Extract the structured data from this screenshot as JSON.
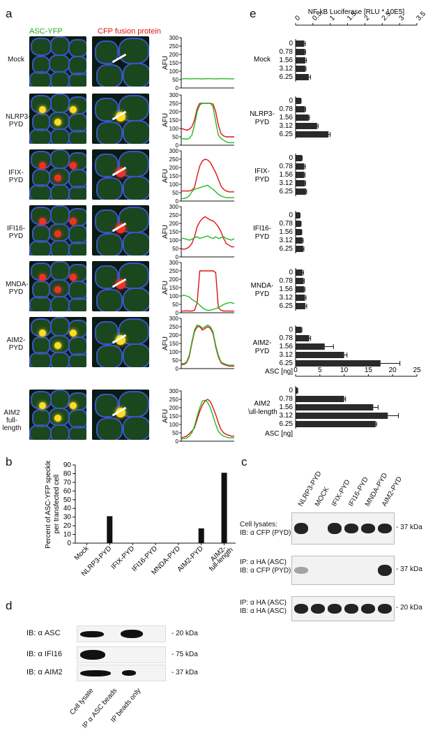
{
  "panels": {
    "a": {
      "letter": "a",
      "header_green": "ASC-YFP",
      "header_red": "CFP fusion protein",
      "rows": [
        {
          "label": "Mock",
          "line2": ""
        },
        {
          "label": "NLRP3-",
          "line2": "PYD"
        },
        {
          "label": "IFIX-",
          "line2": "PYD"
        },
        {
          "label": "IFI16-",
          "line2": "PYD"
        },
        {
          "label": "MNDA-",
          "line2": "PYD"
        },
        {
          "label": "AIM2-",
          "line2": "PYD"
        },
        {
          "label": "AIM2",
          "line2": "full-length"
        }
      ],
      "afu_label": "AFU",
      "afu_ticks": [
        "0",
        "50",
        "100",
        "150",
        "200",
        "250",
        "300"
      ],
      "colors": {
        "green": "#22bb22",
        "red": "#dd1111"
      },
      "profiles": [
        {
          "green": [
            55,
            55,
            56,
            54,
            55,
            55,
            56,
            55,
            54,
            55,
            56,
            55,
            55,
            54,
            55,
            56,
            55,
            55,
            55,
            54,
            55
          ],
          "red": []
        },
        {
          "green": [
            40,
            38,
            36,
            40,
            60,
            120,
            200,
            240,
            250,
            250,
            250,
            250,
            230,
            140,
            60,
            40,
            30,
            20,
            15,
            15,
            15
          ],
          "red": [
            100,
            95,
            90,
            95,
            110,
            150,
            220,
            250,
            250,
            250,
            250,
            250,
            245,
            200,
            120,
            70,
            55,
            50,
            50,
            50,
            50
          ]
        },
        {
          "green": [
            15,
            15,
            20,
            30,
            55,
            70,
            75,
            80,
            85,
            90,
            95,
            80,
            70,
            55,
            40,
            30,
            25,
            20,
            20,
            20,
            20
          ],
          "red": [
            60,
            60,
            60,
            60,
            65,
            80,
            150,
            210,
            240,
            250,
            245,
            230,
            200,
            170,
            130,
            90,
            70,
            60,
            55,
            55,
            55
          ]
        },
        {
          "green": [
            110,
            110,
            105,
            100,
            105,
            115,
            120,
            110,
            115,
            120,
            125,
            115,
            110,
            120,
            110,
            115,
            120,
            110,
            105,
            100,
            110
          ],
          "red": [
            50,
            45,
            50,
            60,
            80,
            120,
            180,
            210,
            230,
            240,
            230,
            220,
            215,
            200,
            180,
            150,
            110,
            80,
            70,
            60,
            60
          ]
        },
        {
          "green": [
            100,
            105,
            100,
            95,
            80,
            70,
            60,
            45,
            30,
            20,
            15,
            15,
            20,
            25,
            30,
            40,
            50,
            55,
            60,
            60,
            55
          ],
          "red": [
            10,
            10,
            12,
            10,
            10,
            15,
            60,
            250,
            250,
            250,
            250,
            250,
            250,
            240,
            30,
            15,
            10,
            10,
            10,
            10,
            10
          ]
        },
        {
          "green": [
            30,
            30,
            40,
            80,
            160,
            230,
            260,
            255,
            240,
            250,
            260,
            250,
            220,
            140,
            80,
            40,
            30,
            25,
            20,
            20,
            20
          ],
          "red": [
            25,
            25,
            35,
            70,
            150,
            220,
            250,
            250,
            230,
            240,
            250,
            240,
            210,
            130,
            70,
            35,
            25,
            20,
            15,
            15,
            15
          ]
        },
        {
          "green": [
            15,
            15,
            20,
            30,
            50,
            90,
            150,
            200,
            240,
            245,
            230,
            200,
            150,
            100,
            60,
            40,
            30,
            25,
            20,
            20,
            20
          ],
          "red": [
            20,
            25,
            30,
            45,
            60,
            80,
            130,
            180,
            215,
            240,
            250,
            235,
            200,
            160,
            110,
            70,
            50,
            40,
            35,
            30,
            30
          ]
        }
      ]
    },
    "b": {
      "letter": "b",
      "chart_data": {
        "type": "bar",
        "categories": [
          "Mock",
          "NLRP3-PYD",
          "IFIX-PYD",
          "IFI16-PYD",
          "MNDA-PYD",
          "AIM2-PYD",
          "AIM2-full-length"
        ],
        "values": [
          0,
          31,
          0,
          0,
          0,
          17,
          81
        ],
        "ylabel": "Percent of ASC-YFP speckle per transfected cell",
        "ylim": [
          0,
          90
        ],
        "yticks": [
          "0",
          "10",
          "20",
          "30",
          "40",
          "50",
          "60",
          "70",
          "80",
          "90"
        ],
        "xtick_labels": [
          "Mock",
          "NLRP3-PYD",
          "IFIX-PYD",
          "IFI16-PYD",
          "MNDA-PYD",
          "AIM2-PYD",
          "AIM2-",
          "full-length"
        ]
      }
    },
    "c": {
      "letter": "c",
      "lanes": [
        "NLRP3-PYD",
        "MOCK",
        "IFIX-PYD",
        "IFI16-PYD",
        "MNDA-PYD",
        "AIM2-PYD"
      ],
      "blots": [
        {
          "label1": "Cell lysates:",
          "label2": "IB: α CFP (PYD)",
          "kda": "- 37 kDa"
        },
        {
          "label1": "IP: α HA (ASC)",
          "label2": "IB: α CFP (PYD)",
          "kda": "- 37 kDa"
        },
        {
          "label1": "IP: α HA (ASC)",
          "label2": "IB: α HA (ASC)",
          "kda": "- 20 kDa"
        }
      ]
    },
    "d": {
      "letter": "d",
      "blots": [
        {
          "label": "IB: α ASC",
          "kda": "- 20 kDa"
        },
        {
          "label": "IB: α IFI16",
          "kda": "- 75 kDa"
        },
        {
          "label": "IB: α AIM2",
          "kda": "- 37 kDa"
        }
      ],
      "lanes": [
        "Cell lysate",
        "IP α ASC beads",
        "IP beads only"
      ]
    },
    "e": {
      "letter": "e",
      "chart_data": [
        {
          "type": "bar",
          "title": "NF-kB Luciferase [RLU * 10E5]",
          "xlim": [
            0,
            3.5
          ],
          "xticks": [
            "0",
            "0.5",
            "1",
            "1.5",
            "2",
            "2.5",
            "3",
            "3.5"
          ],
          "group_label": "ASC [ng]",
          "groups": [
            {
              "name": "Mock",
              "line2": "",
              "doses": [
                "0",
                "0.78",
                "1.56",
                "3.12",
                "6.25"
              ],
              "values": [
                0.25,
                0.27,
                0.28,
                0.28,
                0.38
              ],
              "errors": [
                0.03,
                0.02,
                0.03,
                0.02,
                0.05
              ]
            },
            {
              "name": "NLRP3-",
              "line2": "PYD",
              "doses": [
                "0",
                "0.78",
                "1.56",
                "3.12",
                "6.25"
              ],
              "values": [
                0.15,
                0.27,
                0.38,
                0.62,
                0.95
              ],
              "errors": [
                0.01,
                0.02,
                0.02,
                0.03,
                0.05
              ]
            },
            {
              "name": "IFIX-",
              "line2": "PYD",
              "doses": [
                "0",
                "0.78",
                "1.56",
                "3.12",
                "6.25"
              ],
              "values": [
                0.18,
                0.25,
                0.25,
                0.27,
                0.3
              ],
              "errors": [
                0.01,
                0.03,
                0.02,
                0.02,
                0.02
              ]
            },
            {
              "name": "IFI16-",
              "line2": "PYD",
              "doses": [
                "0",
                "0.78",
                "1.56",
                "3.12",
                "6.25"
              ],
              "values": [
                0.12,
                0.15,
                0.17,
                0.2,
                0.22
              ],
              "errors": [
                0.01,
                0.01,
                0.01,
                0.02,
                0.02
              ]
            },
            {
              "name": "MNDA-",
              "line2": "PYD",
              "doses": [
                "0",
                "0.78",
                "1.56",
                "3.12",
                "6.25"
              ],
              "values": [
                0.2,
                0.23,
                0.25,
                0.27,
                0.28
              ],
              "errors": [
                0.03,
                0.02,
                0.02,
                0.03,
                0.04
              ]
            }
          ]
        },
        {
          "type": "bar",
          "group_label": "ASC [ng]",
          "shared_axis_with_group": "AIM2-PYD",
          "xlim": [
            0,
            25
          ],
          "xticks": [
            "0",
            "5",
            "10",
            "15",
            "20",
            "25"
          ],
          "groups": [
            {
              "name": "AIM2-",
              "line2": "PYD",
              "doses": [
                "0",
                "0.78",
                "1.56",
                "3.12",
                "6.25"
              ],
              "values": [
                1.2,
                2.8,
                6.0,
                10.0,
                17.5
              ],
              "errors": [
                0.1,
                0.3,
                1.8,
                0.6,
                4.0
              ]
            },
            {
              "name": "AIM2",
              "line2": "full-length",
              "doses": [
                "0",
                "0.78",
                "1.56",
                "3.12",
                "6.25"
              ],
              "values": [
                0.4,
                10.0,
                16.0,
                19.0,
                16.5
              ],
              "errors": [
                0.05,
                0.3,
                1.0,
                2.2,
                0.2
              ]
            }
          ]
        }
      ]
    }
  }
}
